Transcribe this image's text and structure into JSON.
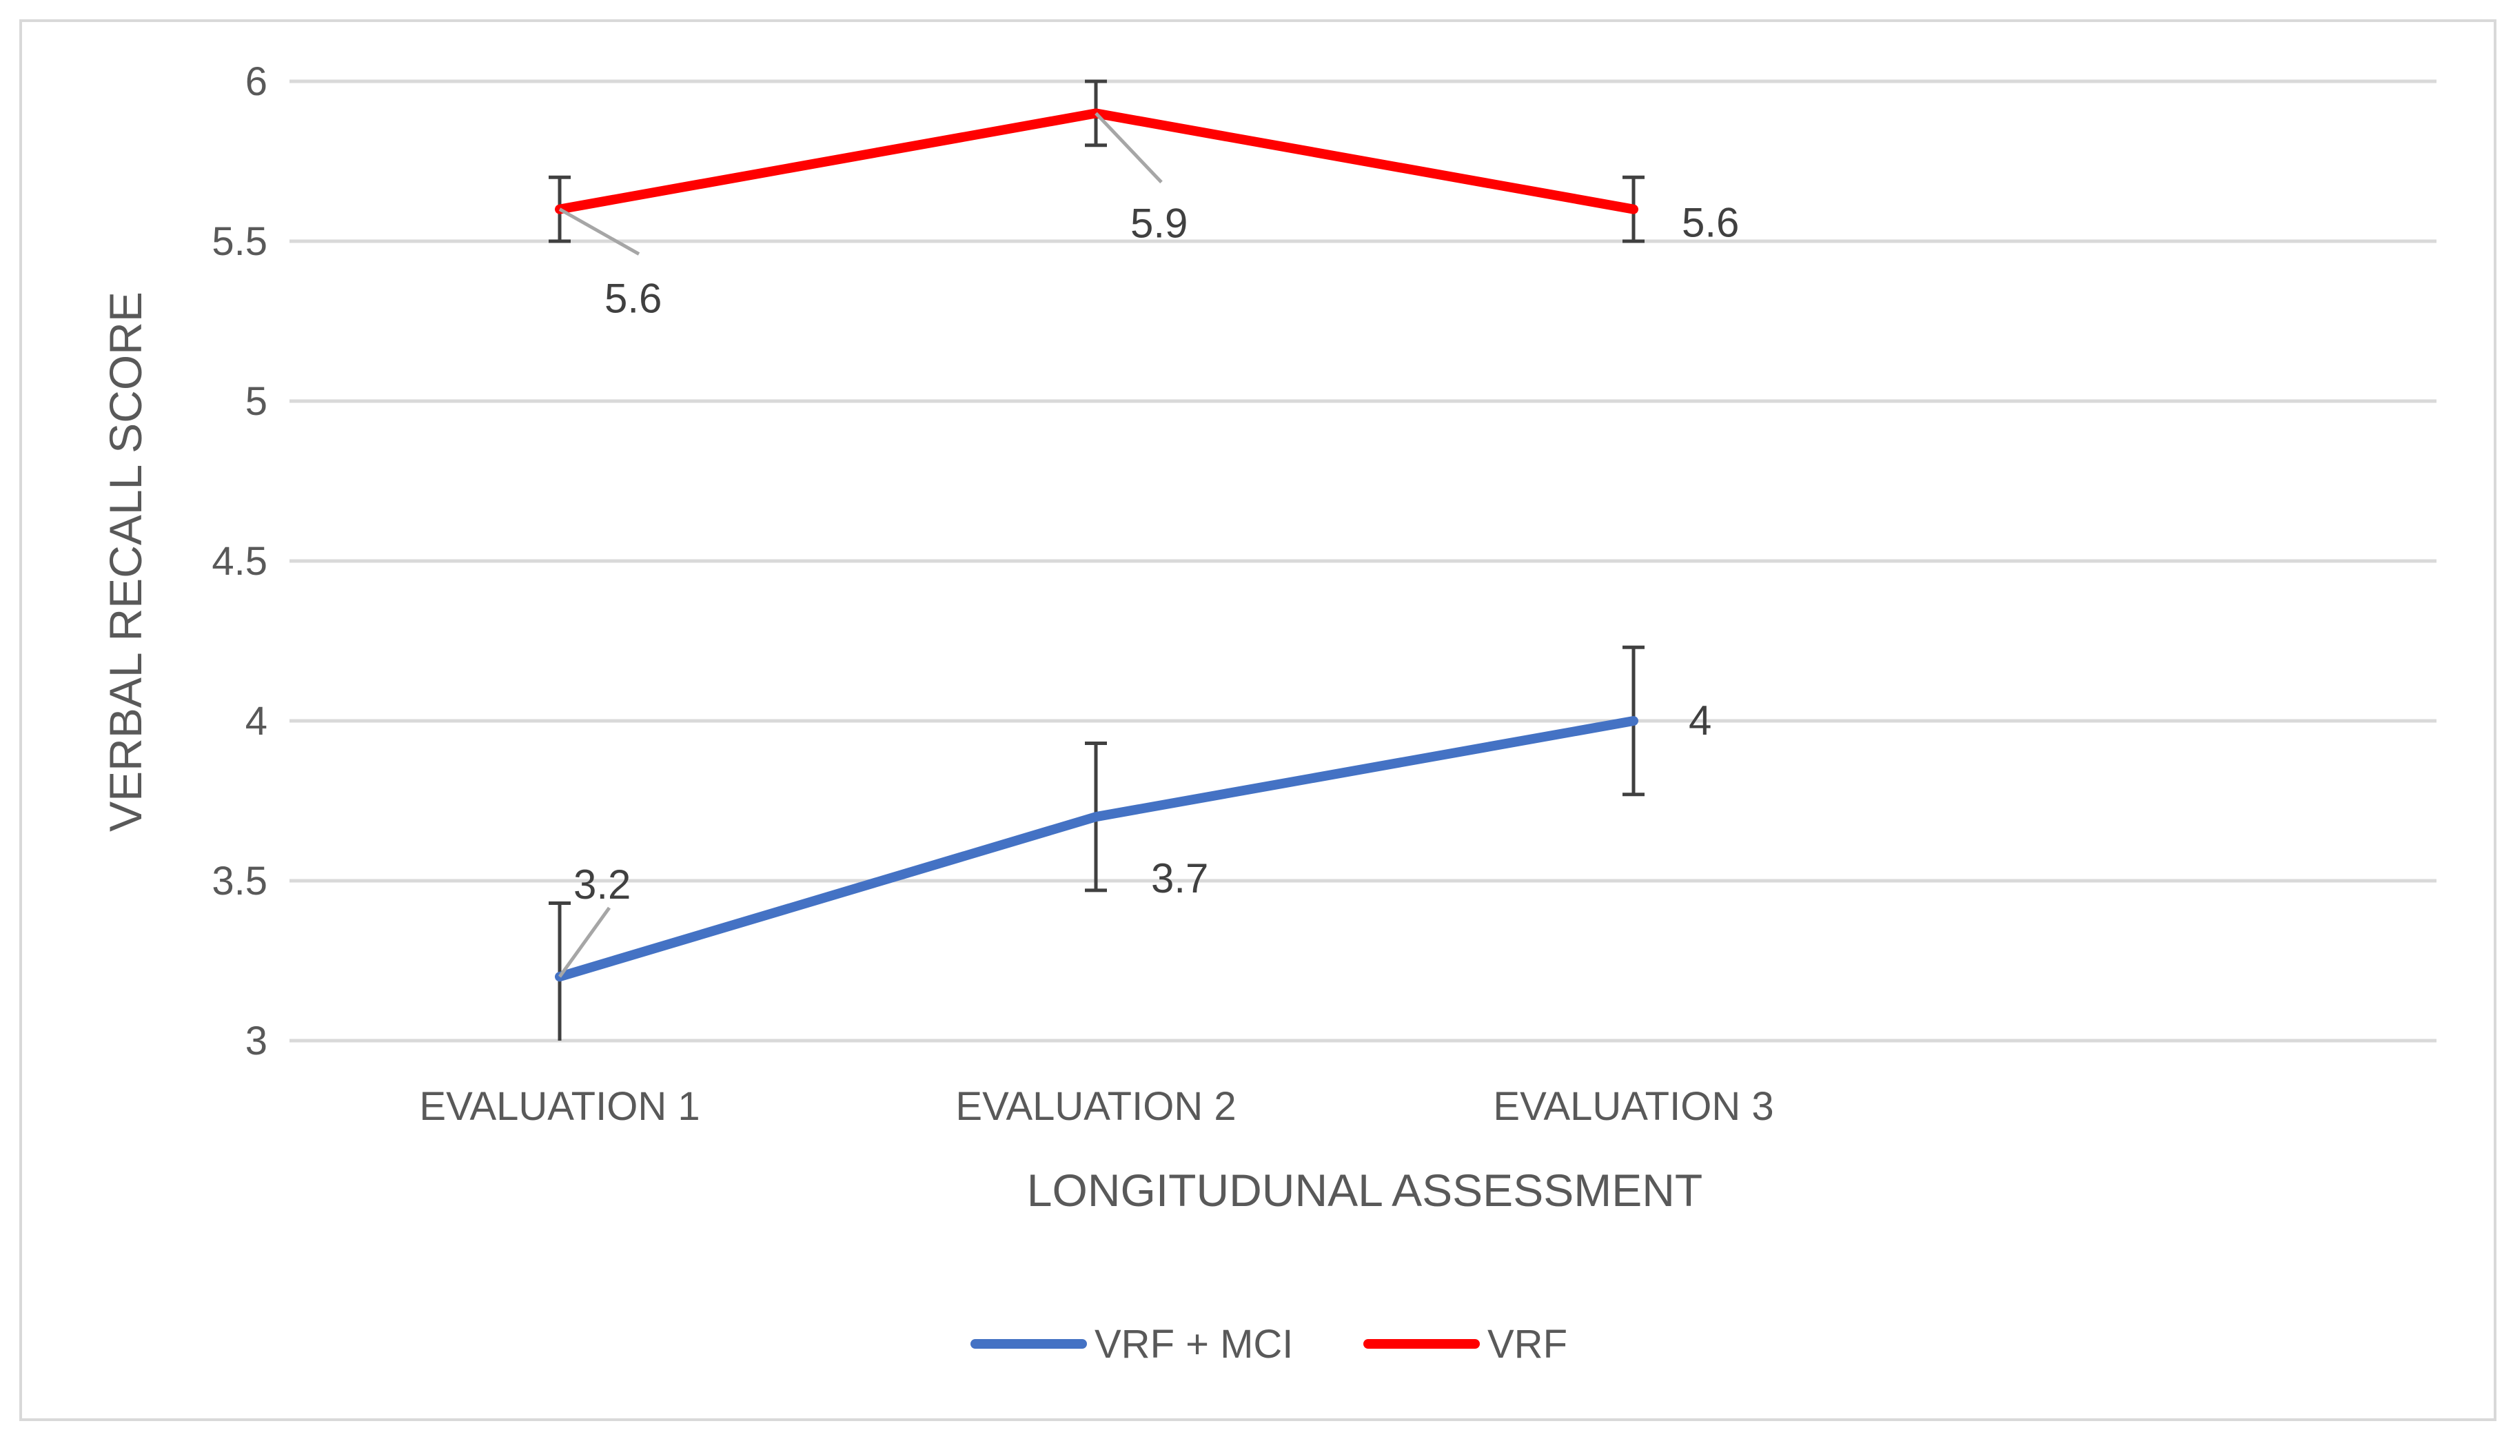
{
  "chart_data": {
    "type": "line",
    "categories": [
      "EVALUATION 1",
      "EVALUATION 2",
      "EVALUATION 3"
    ],
    "xlabel": "LONGITUDUNAL ASSESSMENT",
    "ylabel": "VERBAL RECALL SCORE",
    "ylim": [
      3,
      6
    ],
    "yticks": [
      "3",
      "3.5",
      "4",
      "4.5",
      "5",
      "5.5",
      "6"
    ],
    "grid": true,
    "legend_position": "bottom",
    "series": [
      {
        "name": "VRF + MCI",
        "color": "#4472C4",
        "values": [
          3.2,
          3.7,
          4.0
        ],
        "labels": [
          "3.2",
          "3.7",
          "4"
        ],
        "error": [
          0.23,
          0.23,
          0.23
        ]
      },
      {
        "name": "VRF",
        "color": "#FF0000",
        "values": [
          5.6,
          5.9,
          5.6
        ],
        "labels": [
          "5.6",
          "5.9",
          "5.6"
        ],
        "error": [
          0.1,
          0.1,
          0.1
        ]
      }
    ]
  }
}
